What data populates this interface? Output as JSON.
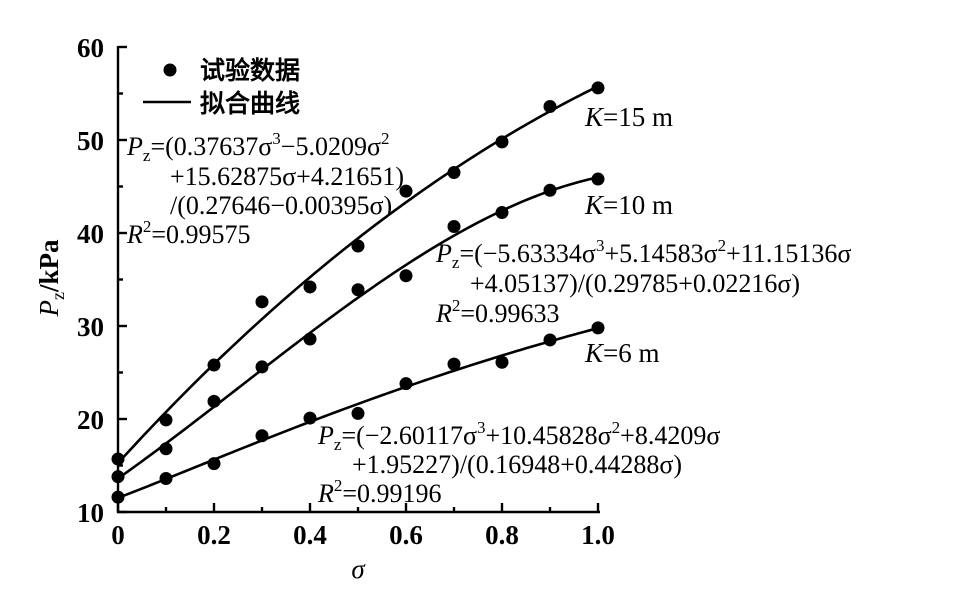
{
  "chart_data": {
    "type": "scatter",
    "xlabel": "σ",
    "ylabel": {
      "main": "P",
      "sub": "z",
      "unit": "/kPa"
    },
    "xlim": [
      0,
      1.0
    ],
    "ylim": [
      10,
      60
    ],
    "xticks": [
      "0",
      "0.2",
      "0.4",
      "0.6",
      "0.8",
      "1.0"
    ],
    "yticks": [
      "10",
      "20",
      "30",
      "40",
      "50",
      "60"
    ],
    "grid": false,
    "legend_position": "top-left",
    "legend": {
      "points": "试验数据",
      "line": "拟合曲线"
    },
    "x": [
      0,
      0.1,
      0.2,
      0.3,
      0.4,
      0.5,
      0.6,
      0.7,
      0.8,
      0.9,
      1.0
    ],
    "series": [
      {
        "name": "K=15 m",
        "label": "K=15 m",
        "points": [
          15.7,
          19.9,
          25.8,
          32.6,
          34.2,
          38.6,
          44.5,
          46.5,
          49.8,
          53.6,
          55.6
        ],
        "fit": {
          "a": [
            0.37637,
            -5.0209,
            15.62875,
            4.21651
          ],
          "b": [
            0.27646,
            -0.00395
          ]
        },
        "equation": [
          "P",
          "z",
          "=(0.37637σ",
          "3",
          "−5.0209σ",
          "2",
          "+15.62875σ+4.21651)",
          "/(0.27646−0.00395σ)"
        ],
        "r2": [
          "R",
          "2",
          "=0.99575"
        ]
      },
      {
        "name": "K=10 m",
        "label": "K=10 m",
        "points": [
          13.8,
          16.8,
          21.9,
          25.6,
          28.6,
          33.9,
          35.4,
          40.7,
          42.2,
          44.6,
          45.8
        ],
        "fit": {
          "a": [
            -5.63334,
            5.14583,
            11.15136,
            4.05137
          ],
          "b": [
            0.29785,
            0.02216
          ]
        },
        "equation": [
          "P",
          "z",
          "=(−5.63334σ",
          "3",
          "+5.14583σ",
          "2",
          "+11.15136σ",
          "+4.05137)/(0.29785+0.02216σ)"
        ],
        "r2": [
          "R",
          "2",
          "=0.99633"
        ]
      },
      {
        "name": "K=6 m",
        "label": "K=6 m",
        "points": [
          11.6,
          13.6,
          15.2,
          18.2,
          20.1,
          20.6,
          23.8,
          25.9,
          26.1,
          28.5,
          29.8
        ],
        "fit": {
          "a": [
            -2.60117,
            10.45828,
            8.4209,
            1.95227
          ],
          "b": [
            0.16948,
            0.44288
          ]
        },
        "equation": [
          "P",
          "z",
          "=(−2.60117σ",
          "3",
          "+10.45828σ",
          "2",
          "+8.4209σ",
          "+1.95227)/(0.16948+0.44288σ)"
        ],
        "r2": [
          "R",
          "2",
          "=0.99196"
        ]
      }
    ]
  }
}
